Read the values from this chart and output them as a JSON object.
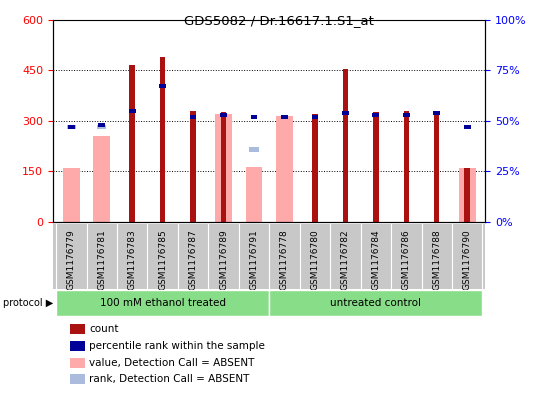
{
  "title": "GDS5082 / Dr.16617.1.S1_at",
  "samples": [
    "GSM1176779",
    "GSM1176781",
    "GSM1176783",
    "GSM1176785",
    "GSM1176787",
    "GSM1176789",
    "GSM1176791",
    "GSM1176778",
    "GSM1176780",
    "GSM1176782",
    "GSM1176784",
    "GSM1176786",
    "GSM1176788",
    "GSM1176790"
  ],
  "count_values": [
    0,
    0,
    465,
    490,
    330,
    325,
    0,
    0,
    320,
    455,
    325,
    330,
    330,
    160
  ],
  "percentile_rank": [
    47,
    48,
    55,
    67,
    52,
    53,
    52,
    52,
    52,
    54,
    53,
    53,
    54,
    47
  ],
  "absent_value": [
    160,
    255,
    0,
    0,
    0,
    320,
    163,
    315,
    0,
    0,
    0,
    0,
    0,
    160
  ],
  "absent_rank": [
    47,
    47,
    0,
    0,
    0,
    0,
    0,
    0,
    0,
    0,
    0,
    0,
    0,
    0
  ],
  "absent_rank_691": [
    0,
    0,
    0,
    0,
    0,
    0,
    36,
    0,
    0,
    0,
    0,
    0,
    0,
    0
  ],
  "protocol_groups": [
    {
      "label": "100 mM ethanol treated",
      "start": 0,
      "end": 7
    },
    {
      "label": "untreated control",
      "start": 7,
      "end": 14
    }
  ],
  "ylim_left": [
    0,
    600
  ],
  "ylim_right": [
    0,
    100
  ],
  "left_ticks": [
    0,
    150,
    300,
    450,
    600
  ],
  "right_ticks": [
    0,
    25,
    50,
    75,
    100
  ],
  "count_color": "#AA1111",
  "percentile_color": "#000099",
  "absent_value_color": "#FFAAAA",
  "absent_rank_color": "#AABBDD",
  "protocol_color": "#88DD88",
  "sample_bg_color": "#C8C8C8"
}
